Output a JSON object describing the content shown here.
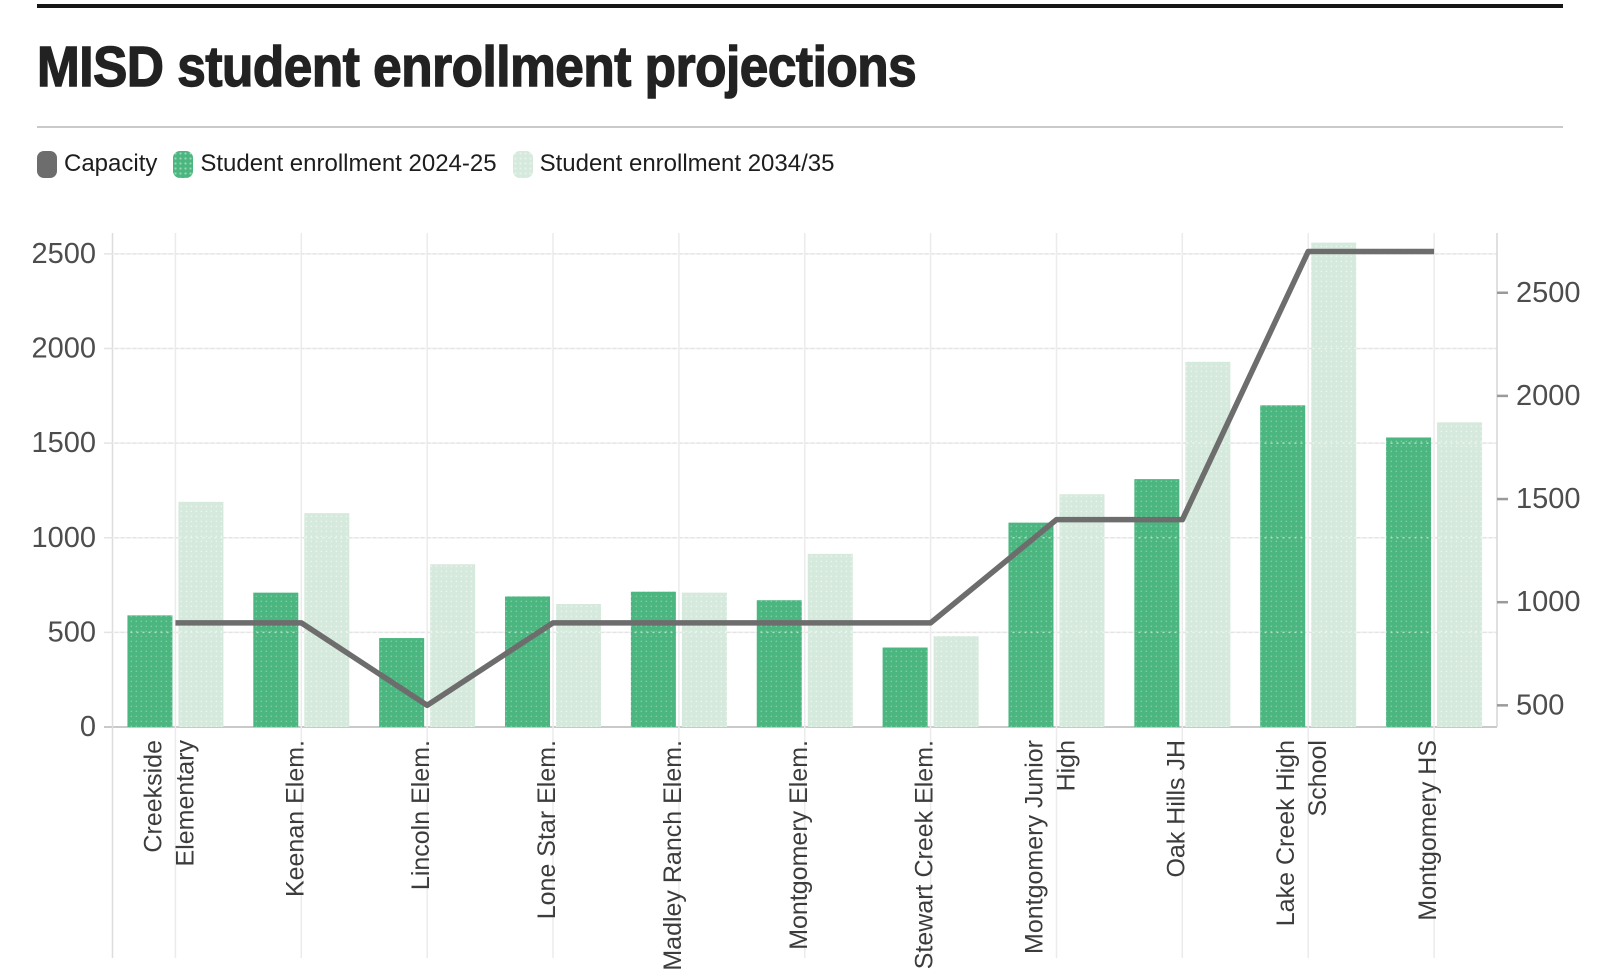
{
  "header": {
    "title": "MISD student enrollment projections"
  },
  "legend": {
    "items": [
      {
        "label": "Capacity",
        "color": "#6d6d6d"
      },
      {
        "label": "Student enrollment 2024-25",
        "color": "#4bb67f"
      },
      {
        "label": "Student enrollment 2034/35",
        "color": "#d5e9dc"
      }
    ]
  },
  "chart_data": {
    "type": "bar",
    "subtype": "grouped-bars-with-capacity-line",
    "title": "MISD student enrollment projections",
    "categories": [
      "Creekside Elementary",
      "Keenan Elem.",
      "Lincoln Elem.",
      "Lone Star Elem.",
      "Madley Ranch Elem.",
      "Montgomery Elem.",
      "Stewart Creek Elem.",
      "Montgomery Junior High",
      "Oak Hills JH",
      "Lake Creek High School",
      "Montgomery HS"
    ],
    "category_label_lines": [
      [
        "Creekside",
        "Elementary"
      ],
      [
        "Keenan Elem."
      ],
      [
        "Lincoln Elem."
      ],
      [
        "Lone Star Elem."
      ],
      [
        "Madley Ranch Elem."
      ],
      [
        "Montgomery Elem."
      ],
      [
        "Stewart Creek Elem."
      ],
      [
        "Montgomery Junior",
        "High"
      ],
      [
        "Oak Hills JH"
      ],
      [
        "Lake Creek High",
        "School"
      ],
      [
        "Montgomery HS"
      ]
    ],
    "series": [
      {
        "name": "Capacity",
        "type": "line",
        "axis": "right",
        "color": "#6d6d6d",
        "values": [
          900,
          900,
          500,
          900,
          900,
          900,
          900,
          1400,
          1400,
          2700,
          2700
        ]
      },
      {
        "name": "Student enrollment 2024-25",
        "type": "bar",
        "axis": "left",
        "color": "#4bb67f",
        "values": [
          590,
          710,
          470,
          690,
          715,
          670,
          420,
          1080,
          1310,
          1700,
          1530
        ]
      },
      {
        "name": "Student enrollment 2034/35",
        "type": "bar",
        "axis": "left",
        "color": "#d5e9dc",
        "values": [
          1190,
          1130,
          860,
          650,
          710,
          915,
          480,
          1230,
          1930,
          2560,
          1610
        ]
      }
    ],
    "left_axis": {
      "ticks": [
        0,
        500,
        1000,
        1500,
        2000,
        2500
      ],
      "max": 2600
    },
    "right_axis": {
      "ticks": [
        500,
        1000,
        1500,
        2000,
        2500
      ],
      "range_top": 2780,
      "range_bottom": 395
    },
    "grid": true,
    "legend_position": "top"
  }
}
